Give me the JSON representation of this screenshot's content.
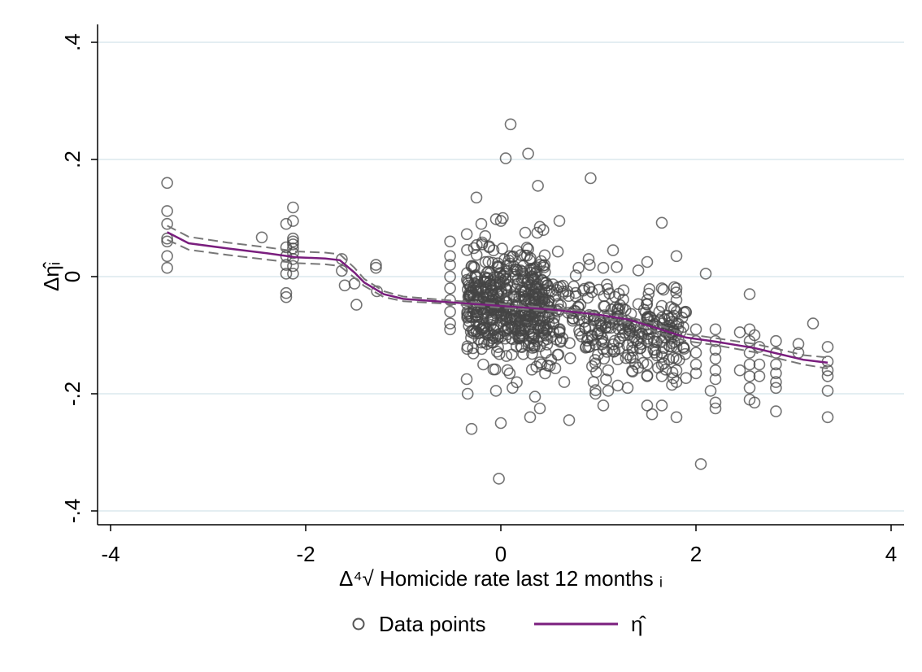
{
  "chart_data": {
    "type": "scatter",
    "title": "",
    "xlabel": "Δ⁴√ Homicide rate last 12 months ᵢ",
    "ylabel": "Δη̂ᵢ",
    "xlim": [
      -4.1,
      4.1
    ],
    "ylim": [
      -0.42,
      0.42
    ],
    "xticks": [
      -4,
      -2,
      0,
      2,
      4
    ],
    "xtick_labels": [
      "-4",
      "-2",
      "0",
      "2",
      "4"
    ],
    "yticks": [
      -0.4,
      -0.2,
      0,
      0.2,
      0.4
    ],
    "ytick_labels": [
      "-.4",
      "-.2",
      "0",
      ".2",
      ".4"
    ],
    "grid": "horizontal",
    "legend_position": "bottom",
    "colors": {
      "points": "#444444",
      "fit": "#7a1e7e",
      "ci": "#777777",
      "grid": "#dbe9ee"
    },
    "series": [
      {
        "name": "Data points",
        "kind": "scatter",
        "points": [
          [
            -3.42,
            0.16
          ],
          [
            -3.42,
            0.112
          ],
          [
            -3.42,
            0.09
          ],
          [
            -3.42,
            0.065
          ],
          [
            -3.42,
            0.06
          ],
          [
            -3.42,
            0.035
          ],
          [
            -3.42,
            0.015
          ],
          [
            -2.45,
            0.067
          ],
          [
            -2.2,
            0.09
          ],
          [
            -2.2,
            0.05
          ],
          [
            -2.2,
            0.035
          ],
          [
            -2.2,
            0.02
          ],
          [
            -2.2,
            0.005
          ],
          [
            -2.2,
            -0.028
          ],
          [
            -2.2,
            -0.035
          ],
          [
            -2.13,
            0.118
          ],
          [
            -2.13,
            0.095
          ],
          [
            -2.13,
            0.065
          ],
          [
            -2.13,
            0.06
          ],
          [
            -2.13,
            0.055
          ],
          [
            -2.13,
            0.048
          ],
          [
            -2.13,
            0.04
          ],
          [
            -2.13,
            0.03
          ],
          [
            -2.13,
            0.018
          ],
          [
            -2.13,
            0.005
          ],
          [
            -1.63,
            0.03
          ],
          [
            -1.63,
            0.01
          ],
          [
            -1.6,
            -0.015
          ],
          [
            -1.48,
            -0.048
          ],
          [
            -1.5,
            -0.012
          ],
          [
            -1.28,
            0.02
          ],
          [
            -1.28,
            0.015
          ],
          [
            -1.27,
            -0.025
          ],
          [
            -0.52,
            0.06
          ],
          [
            -0.52,
            0.035
          ],
          [
            -0.52,
            0.02
          ],
          [
            -0.52,
            0.0
          ],
          [
            -0.52,
            -0.02
          ],
          [
            -0.52,
            -0.04
          ],
          [
            -0.52,
            -0.06
          ],
          [
            -0.52,
            -0.08
          ],
          [
            -0.52,
            -0.09
          ],
          [
            -0.35,
            -0.175
          ],
          [
            -0.3,
            -0.26
          ],
          [
            -0.25,
            0.135
          ],
          [
            -0.2,
            0.09
          ],
          [
            -0.18,
            -0.15
          ],
          [
            -0.12,
            0.05
          ],
          [
            -0.05,
            0.098
          ],
          [
            -0.05,
            -0.195
          ],
          [
            0.0,
            -0.25
          ],
          [
            -0.02,
            -0.345
          ],
          [
            0.0,
            0.095
          ],
          [
            0.02,
            0.1
          ],
          [
            0.05,
            0.202
          ],
          [
            0.1,
            0.26
          ],
          [
            0.12,
            -0.19
          ],
          [
            0.28,
            0.21
          ],
          [
            0.25,
            0.075
          ],
          [
            0.38,
            0.155
          ],
          [
            0.4,
            0.085
          ],
          [
            0.3,
            -0.24
          ],
          [
            0.35,
            -0.205
          ],
          [
            0.4,
            -0.225
          ],
          [
            0.6,
            0.095
          ],
          [
            0.7,
            -0.245
          ],
          [
            0.65,
            -0.18
          ],
          [
            0.92,
            0.168
          ],
          [
            0.9,
            0.03
          ],
          [
            0.95,
            -0.18
          ],
          [
            0.97,
            -0.2
          ],
          [
            1.05,
            0.015
          ],
          [
            1.05,
            -0.22
          ],
          [
            1.1,
            -0.195
          ],
          [
            1.15,
            0.045
          ],
          [
            1.1,
            -0.16
          ],
          [
            1.3,
            -0.19
          ],
          [
            1.5,
            0.025
          ],
          [
            1.5,
            -0.22
          ],
          [
            1.55,
            -0.235
          ],
          [
            1.65,
            0.092
          ],
          [
            1.65,
            -0.22
          ],
          [
            1.8,
            0.035
          ],
          [
            1.8,
            -0.24
          ],
          [
            1.8,
            -0.18
          ],
          [
            2.05,
            -0.32
          ],
          [
            2.1,
            0.005
          ],
          [
            2.15,
            -0.195
          ],
          [
            2.2,
            -0.215
          ],
          [
            2.2,
            -0.225
          ],
          [
            2.55,
            -0.03
          ],
          [
            2.55,
            -0.21
          ],
          [
            2.6,
            -0.215
          ],
          [
            2.82,
            -0.23
          ],
          [
            3.2,
            -0.08
          ],
          [
            3.35,
            -0.24
          ],
          [
            3.35,
            -0.195
          ],
          [
            2.0,
            -0.09
          ],
          [
            2.0,
            -0.11
          ],
          [
            2.0,
            -0.13
          ],
          [
            2.0,
            -0.15
          ],
          [
            2.0,
            -0.165
          ],
          [
            2.2,
            -0.09
          ],
          [
            2.2,
            -0.11
          ],
          [
            2.2,
            -0.125
          ],
          [
            2.2,
            -0.14
          ],
          [
            2.2,
            -0.16
          ],
          [
            2.2,
            -0.175
          ],
          [
            2.55,
            -0.09
          ],
          [
            2.55,
            -0.11
          ],
          [
            2.55,
            -0.13
          ],
          [
            2.55,
            -0.15
          ],
          [
            2.55,
            -0.17
          ],
          [
            2.55,
            -0.19
          ],
          [
            2.65,
            -0.12
          ],
          [
            2.65,
            -0.15
          ],
          [
            2.65,
            -0.17
          ],
          [
            2.82,
            -0.11
          ],
          [
            2.82,
            -0.13
          ],
          [
            2.82,
            -0.15
          ],
          [
            2.82,
            -0.165
          ],
          [
            2.82,
            -0.18
          ],
          [
            2.82,
            -0.19
          ],
          [
            3.05,
            -0.115
          ],
          [
            3.05,
            -0.13
          ],
          [
            3.35,
            -0.12
          ],
          [
            3.35,
            -0.145
          ],
          [
            3.35,
            -0.16
          ],
          [
            3.35,
            -0.17
          ],
          [
            2.45,
            -0.095
          ],
          [
            2.45,
            -0.16
          ],
          [
            2.6,
            -0.1
          ],
          [
            1.8,
            -0.02
          ],
          [
            1.8,
            -0.04
          ],
          [
            1.8,
            -0.06
          ],
          [
            1.8,
            -0.08
          ],
          [
            1.8,
            -0.1
          ],
          [
            1.8,
            -0.12
          ],
          [
            1.8,
            -0.14
          ],
          [
            1.8,
            -0.16
          ],
          [
            1.65,
            -0.02
          ],
          [
            1.65,
            -0.05
          ],
          [
            1.65,
            -0.07
          ],
          [
            1.65,
            -0.09
          ],
          [
            1.65,
            -0.11
          ],
          [
            1.65,
            -0.13
          ],
          [
            1.65,
            -0.15
          ],
          [
            1.65,
            -0.17
          ],
          [
            1.5,
            -0.04
          ],
          [
            1.5,
            -0.07
          ],
          [
            1.5,
            -0.09
          ],
          [
            1.5,
            -0.11
          ],
          [
            1.5,
            -0.13
          ],
          [
            1.5,
            -0.15
          ],
          [
            1.5,
            -0.17
          ]
        ]
      },
      {
        "name": "η̂",
        "kind": "line",
        "points": [
          [
            -3.42,
            0.076
          ],
          [
            -3.2,
            0.057
          ],
          [
            -2.8,
            0.048
          ],
          [
            -2.4,
            0.04
          ],
          [
            -2.1,
            0.033
          ],
          [
            -1.8,
            0.031
          ],
          [
            -1.65,
            0.028
          ],
          [
            -1.5,
            0.007
          ],
          [
            -1.4,
            -0.01
          ],
          [
            -1.2,
            -0.03
          ],
          [
            -1.0,
            -0.038
          ],
          [
            -0.5,
            -0.044
          ],
          [
            0.0,
            -0.05
          ],
          [
            0.5,
            -0.056
          ],
          [
            1.0,
            -0.065
          ],
          [
            1.3,
            -0.073
          ],
          [
            1.6,
            -0.088
          ],
          [
            1.9,
            -0.104
          ],
          [
            2.2,
            -0.111
          ],
          [
            2.6,
            -0.122
          ],
          [
            2.8,
            -0.13
          ],
          [
            3.1,
            -0.142
          ],
          [
            3.35,
            -0.147
          ]
        ]
      },
      {
        "kind": "dashed",
        "points": [
          [
            -3.42,
            0.087
          ],
          [
            -3.2,
            0.068
          ],
          [
            -2.8,
            0.058
          ],
          [
            -2.4,
            0.05
          ],
          [
            -2.1,
            0.043
          ],
          [
            -1.8,
            0.041
          ],
          [
            -1.65,
            0.038
          ],
          [
            -1.5,
            0.015
          ],
          [
            -1.4,
            -0.004
          ],
          [
            -1.2,
            -0.025
          ],
          [
            -1.0,
            -0.034
          ],
          [
            -0.5,
            -0.041
          ],
          [
            0.0,
            -0.047
          ],
          [
            0.5,
            -0.053
          ],
          [
            1.0,
            -0.061
          ],
          [
            1.3,
            -0.068
          ],
          [
            1.6,
            -0.082
          ],
          [
            1.9,
            -0.098
          ],
          [
            2.2,
            -0.105
          ],
          [
            2.6,
            -0.115
          ],
          [
            2.8,
            -0.122
          ],
          [
            3.1,
            -0.134
          ],
          [
            3.35,
            -0.138
          ]
        ]
      },
      {
        "kind": "dashed",
        "points": [
          [
            -3.42,
            0.063
          ],
          [
            -3.2,
            0.046
          ],
          [
            -2.8,
            0.037
          ],
          [
            -2.4,
            0.029
          ],
          [
            -2.1,
            0.023
          ],
          [
            -1.8,
            0.021
          ],
          [
            -1.65,
            0.018
          ],
          [
            -1.5,
            -0.002
          ],
          [
            -1.4,
            -0.016
          ],
          [
            -1.2,
            -0.035
          ],
          [
            -1.0,
            -0.042
          ],
          [
            -0.5,
            -0.047
          ],
          [
            0.0,
            -0.053
          ],
          [
            0.5,
            -0.059
          ],
          [
            1.0,
            -0.069
          ],
          [
            1.3,
            -0.078
          ],
          [
            1.6,
            -0.094
          ],
          [
            1.9,
            -0.11
          ],
          [
            2.2,
            -0.117
          ],
          [
            2.6,
            -0.129
          ],
          [
            2.8,
            -0.138
          ],
          [
            3.1,
            -0.15
          ],
          [
            3.35,
            -0.157
          ]
        ]
      }
    ],
    "dense_clusters": [
      {
        "x_range": [
          -0.35,
          0.5
        ],
        "y_mean": -0.05,
        "y_sd": 0.045,
        "count": 520
      },
      {
        "x_range": [
          0.5,
          1.3
        ],
        "y_mean": -0.08,
        "y_sd": 0.04,
        "count": 160
      },
      {
        "x_range": [
          1.3,
          1.9
        ],
        "y_mean": -0.1,
        "y_sd": 0.035,
        "count": 120
      }
    ]
  },
  "legend": {
    "points_label": "Data points",
    "line_label": "η̂"
  }
}
